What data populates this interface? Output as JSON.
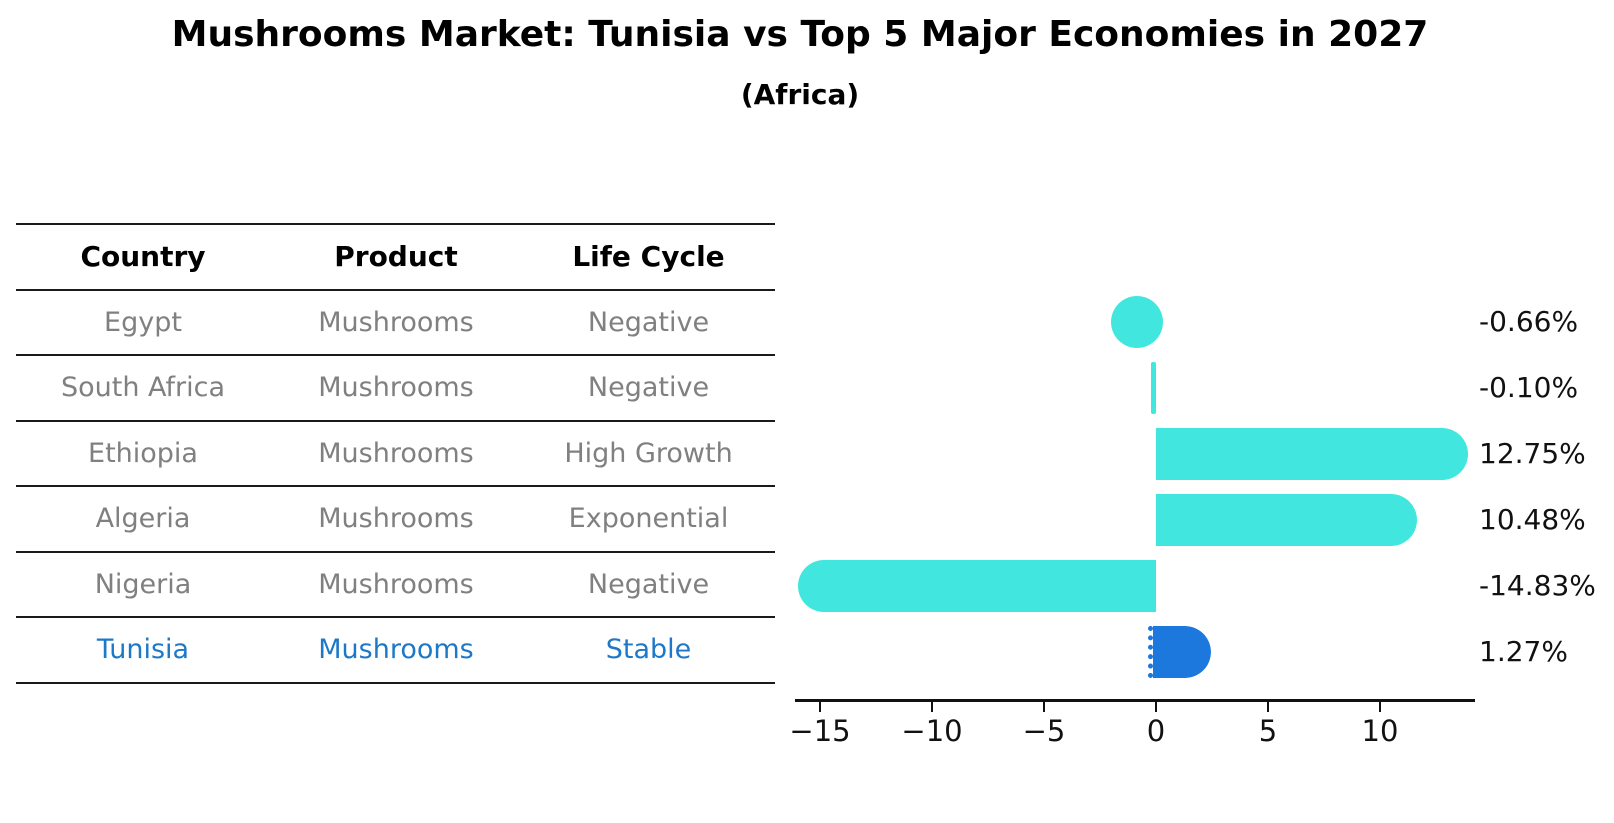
{
  "header": {
    "title": "Mushrooms Market: Tunisia vs Top 5 Major Economies in 2027",
    "subtitle": "(Africa)"
  },
  "table": {
    "headers": [
      "Country",
      "Product",
      "Life Cycle"
    ],
    "rows": [
      {
        "country": "Egypt",
        "product": "Mushrooms",
        "life_cycle": "Negative"
      },
      {
        "country": "South Africa",
        "product": "Mushrooms",
        "life_cycle": "Negative"
      },
      {
        "country": "Ethiopia",
        "product": "Mushrooms",
        "life_cycle": "High Growth"
      },
      {
        "country": "Algeria",
        "product": "Mushrooms",
        "life_cycle": "Exponential"
      },
      {
        "country": "Nigeria",
        "product": "Mushrooms",
        "life_cycle": "Negative"
      },
      {
        "country": "Tunisia",
        "product": "Mushrooms",
        "life_cycle": "Stable"
      }
    ]
  },
  "chart_data": {
    "type": "bar",
    "orientation": "horizontal",
    "title": "Mushrooms Market: Tunisia vs Top 5 Major Economies in 2027",
    "subtitle": "(Africa)",
    "categories": [
      "Egypt",
      "South Africa",
      "Ethiopia",
      "Algeria",
      "Nigeria",
      "Tunisia"
    ],
    "values": [
      -0.66,
      -0.1,
      12.75,
      10.48,
      -14.83,
      1.27
    ],
    "value_labels": [
      "-0.66%",
      "-0.10%",
      "12.75%",
      "10.48%",
      "-14.83%",
      "1.27%"
    ],
    "highlight_country": "Tunisia",
    "bar_color": "#41e7de",
    "highlight_bar_color": "#1c78dd",
    "highlight_text_color": "#1e78c8",
    "x_ticks": [
      -15,
      -10,
      -5,
      0,
      5,
      10
    ],
    "x_tick_labels": [
      "−15",
      "−10",
      "−5",
      "0",
      "5",
      "10"
    ],
    "xlim": [
      -16.3,
      14.2
    ],
    "xlabel": "",
    "ylabel": "",
    "grid": false,
    "legend": false
  }
}
